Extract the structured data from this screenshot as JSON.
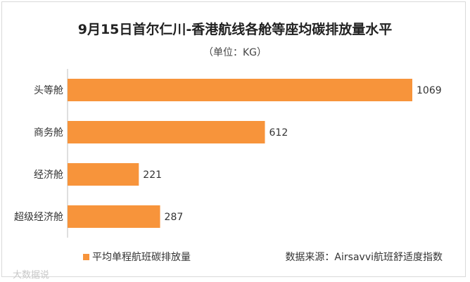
{
  "chart_data": {
    "type": "bar",
    "orientation": "horizontal",
    "title": "9月15日首尔仁川-香港航线各舱等座均碳排放量水平",
    "subtitle": "（单位：KG）",
    "categories": [
      "头等舱",
      "商务舱",
      "经济舱",
      "超级经济舱"
    ],
    "series": [
      {
        "name": "平均单程航班碳排放量",
        "values": [
          1069,
          612,
          221,
          287
        ]
      }
    ],
    "xlim": [
      0,
      1069
    ],
    "grid": false,
    "legend": "bottom-left",
    "source": "数据来源：Airsavvi航班舒适度指数",
    "colors": {
      "bar": "#F7943B",
      "axis": "#bfbfbf",
      "text": "#333333"
    }
  },
  "watermark": "大数据说"
}
